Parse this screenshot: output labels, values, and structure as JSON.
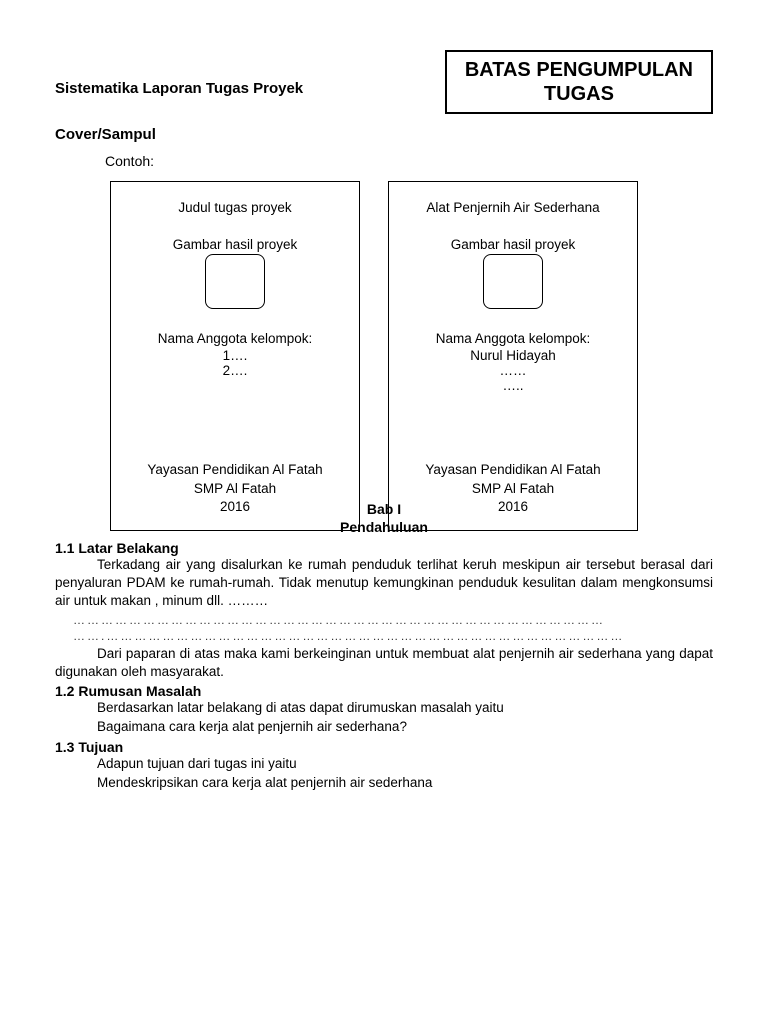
{
  "header": {
    "left_title": "Sistematika Laporan Tugas Proyek",
    "deadline_line1": "BATAS PENGUMPULAN",
    "deadline_line2": "TUGAS"
  },
  "cover_section": {
    "label": "Cover/Sampul",
    "contoh": "Contoh:"
  },
  "cover_left": {
    "title": "Judul tugas proyek",
    "img_label": "Gambar hasil proyek",
    "members_label": "Nama Anggota kelompok:",
    "member1": "1….",
    "member2": "2….",
    "footer1": "Yayasan Pendidikan Al Fatah",
    "footer2": "SMP Al Fatah",
    "footer3": "2016"
  },
  "cover_right": {
    "title": "Alat Penjernih Air Sederhana",
    "img_label": "Gambar hasil proyek",
    "members_label": "Nama Anggota kelompok:",
    "member1": "Nurul Hidayah",
    "member2": "……",
    "member3": "…..",
    "footer1": "Yayasan Pendidikan Al Fatah",
    "footer2": "SMP Al Fatah",
    "footer3": "2016"
  },
  "bab": {
    "line1": "Bab I",
    "line2": "Pendahuluan"
  },
  "s11": {
    "title": "1.1 Latar Belakang",
    "p1": "Terkadang air yang disalurkan ke rumah penduduk terlihat keruh meskipun air tersebut berasal dari penyaluran PDAM ke rumah-rumah. Tidak menutup kemungkinan penduduk kesulitan dalam mengkonsumsi air untuk makan , minum dll. ………",
    "dots1": "……………………………………………………………………………………………………",
    "dots2": "…….…………………………………………………………………………………………………",
    "p2": "Dari paparan di atas maka kami berkeinginan untuk membuat alat penjernih air sederhana yang dapat digunakan oleh masyarakat."
  },
  "s12": {
    "title": "1.2 Rumusan Masalah",
    "l1": "Berdasarkan latar belakang di atas dapat dirumuskan masalah yaitu",
    "l2": "Bagaimana cara kerja alat penjernih air sederhana?"
  },
  "s13": {
    "title": "1.3 Tujuan",
    "l1": "Adapun tujuan dari tugas ini yaitu",
    "l2": "Mendeskripsikan cara kerja alat penjernih air sederhana"
  }
}
